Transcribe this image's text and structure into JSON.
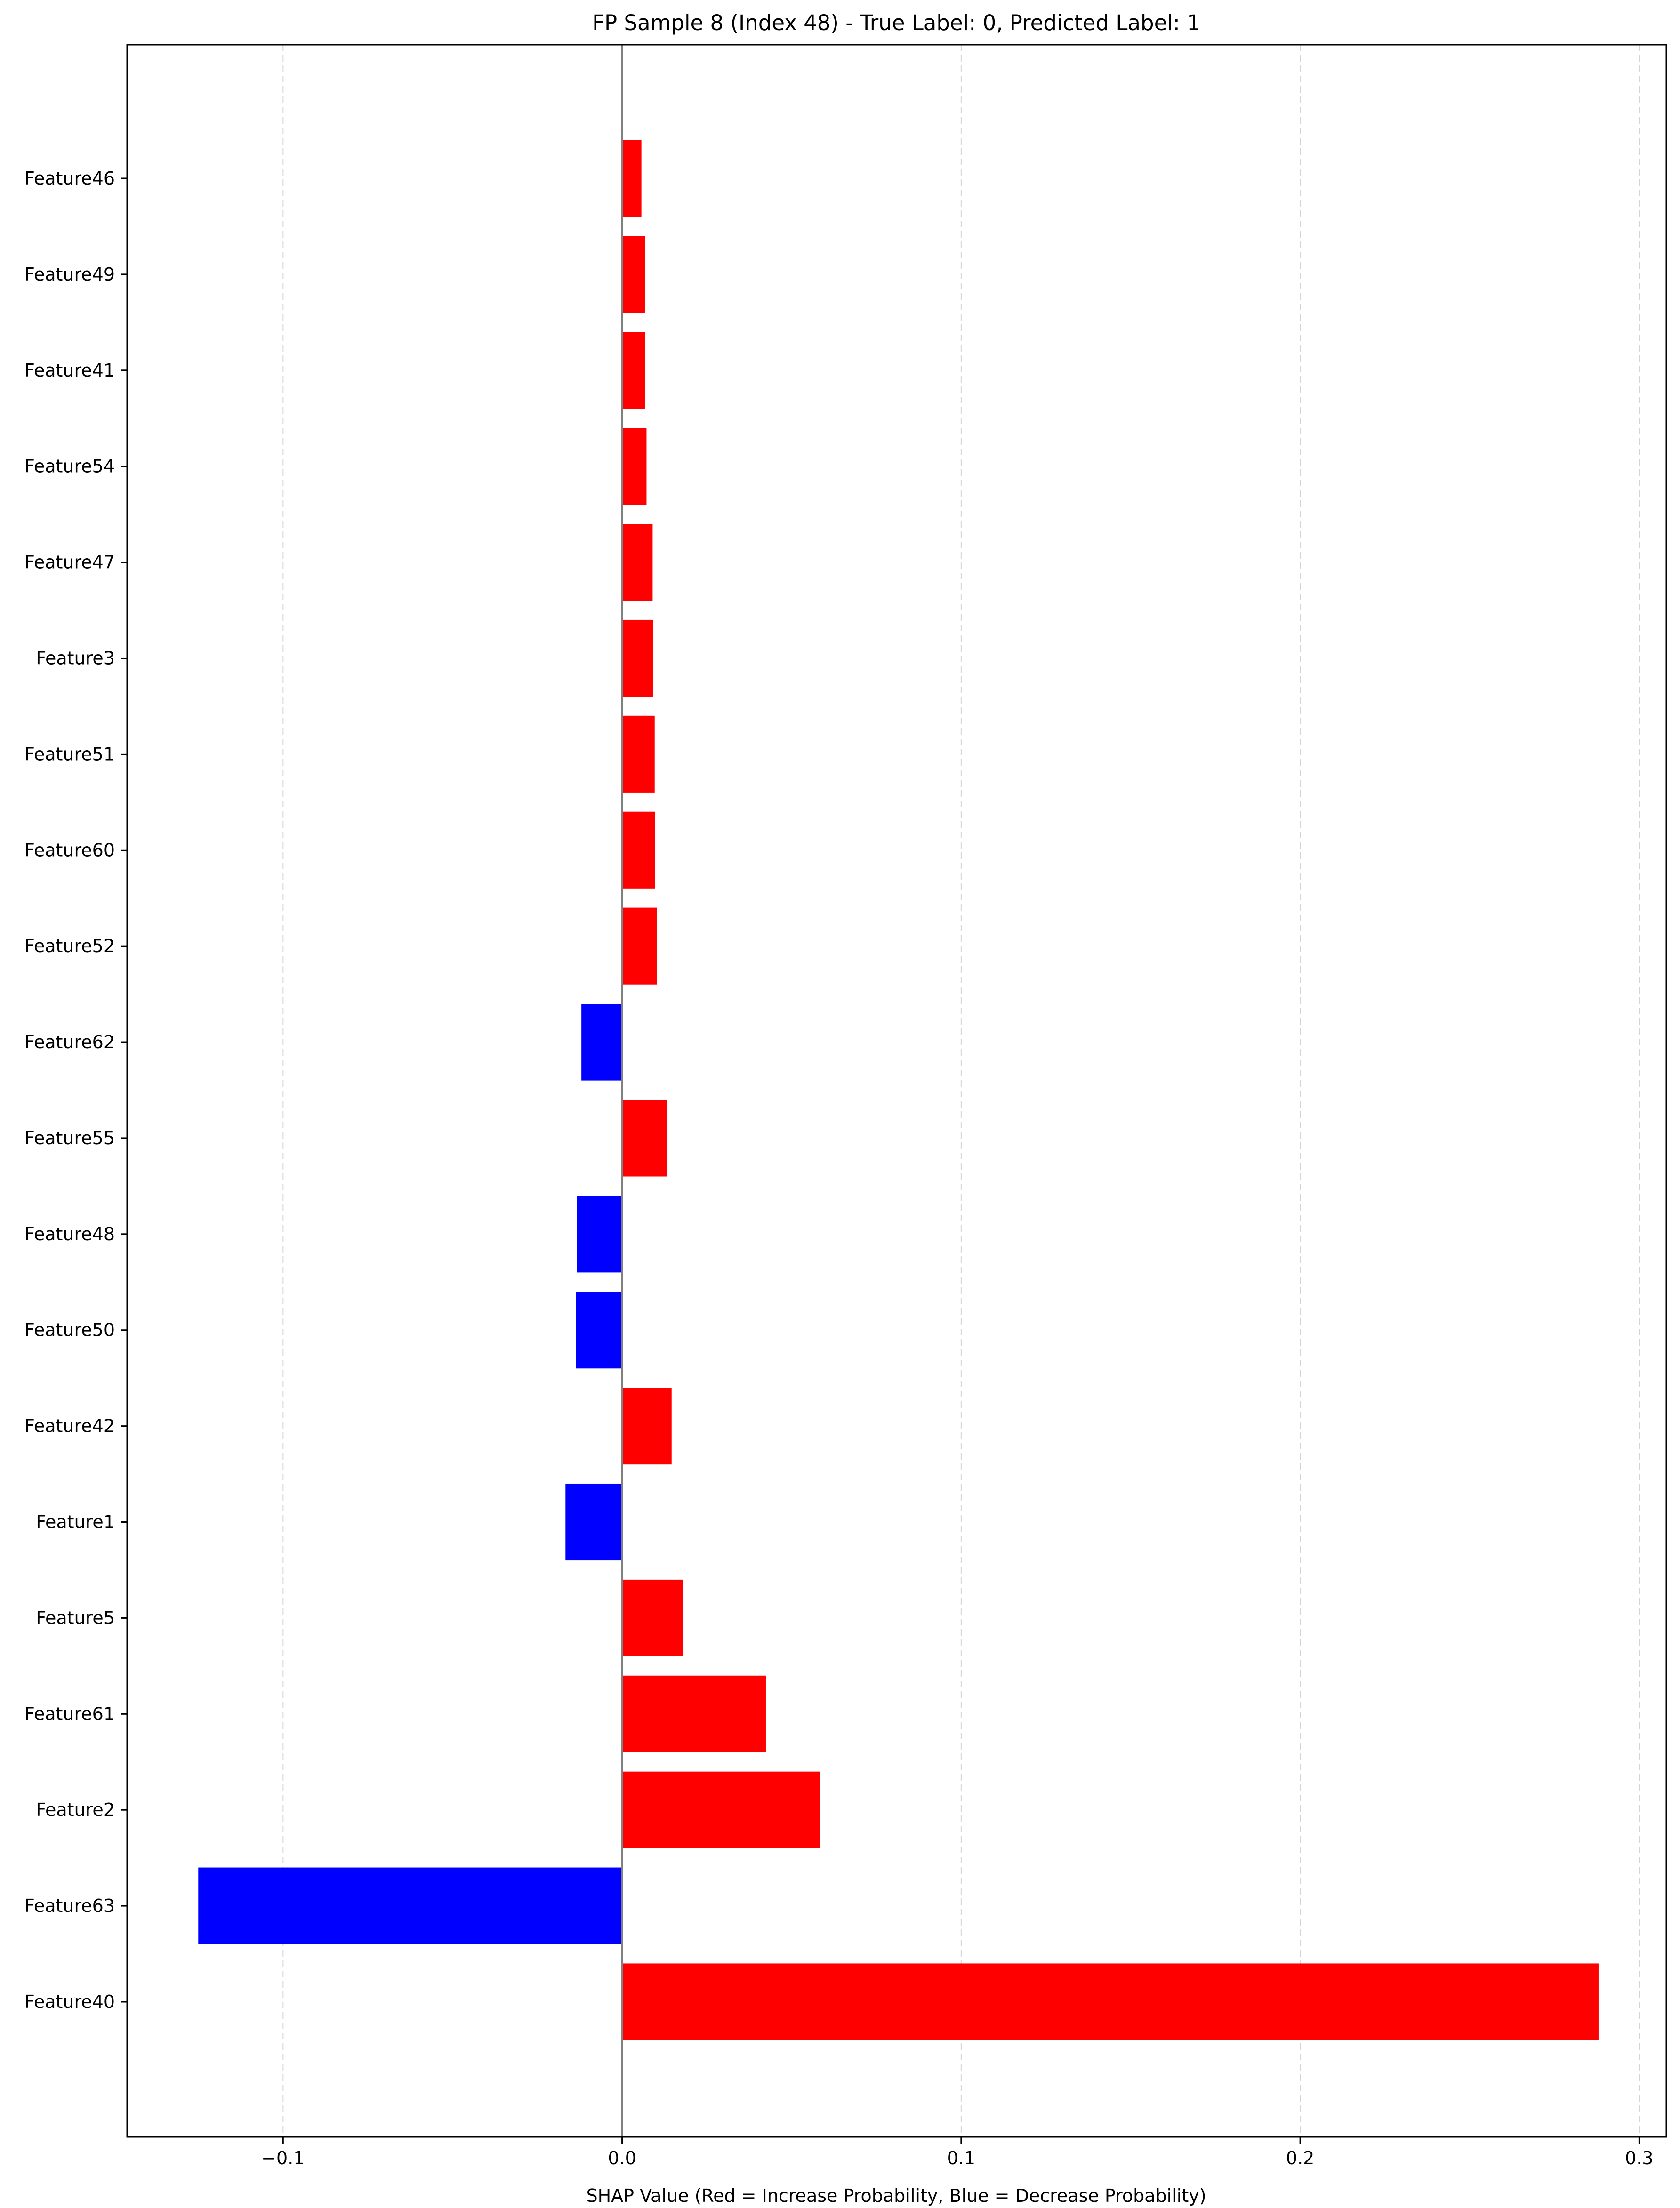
{
  "chart_data": {
    "type": "bar",
    "orientation": "horizontal",
    "title": "FP Sample 8 (Index 48) - True Label: 0, Predicted Label: 1",
    "xlabel": "SHAP Value (Red = Increase Probability, Blue = Decrease Probability)",
    "ylabel": "",
    "xlim": [
      -0.146,
      0.308
    ],
    "xticks": [
      -0.1,
      0.0,
      0.1,
      0.2,
      0.3
    ],
    "xtick_labels": [
      "−0.1",
      "0.0",
      "0.1",
      "0.2",
      "0.3"
    ],
    "grid": {
      "x": true,
      "y": false,
      "style": "dashed"
    },
    "zero_line": true,
    "categories": [
      "Feature46",
      "Feature49",
      "Feature41",
      "Feature54",
      "Feature47",
      "Feature3",
      "Feature51",
      "Feature60",
      "Feature52",
      "Feature62",
      "Feature55",
      "Feature48",
      "Feature50",
      "Feature42",
      "Feature1",
      "Feature5",
      "Feature61",
      "Feature2",
      "Feature63",
      "Feature40"
    ],
    "values": [
      0.0057,
      0.0068,
      0.0068,
      0.0072,
      0.009,
      0.0091,
      0.0096,
      0.0097,
      0.0102,
      -0.012,
      0.0132,
      -0.0134,
      -0.0136,
      0.0146,
      -0.0167,
      0.0181,
      0.0424,
      0.0584,
      -0.125,
      0.288
    ],
    "colors": {
      "positive": "#ff0000",
      "negative": "#0000ff",
      "zero_line": "#808080",
      "grid": "#b0b0b0",
      "axes": "#000000"
    }
  }
}
